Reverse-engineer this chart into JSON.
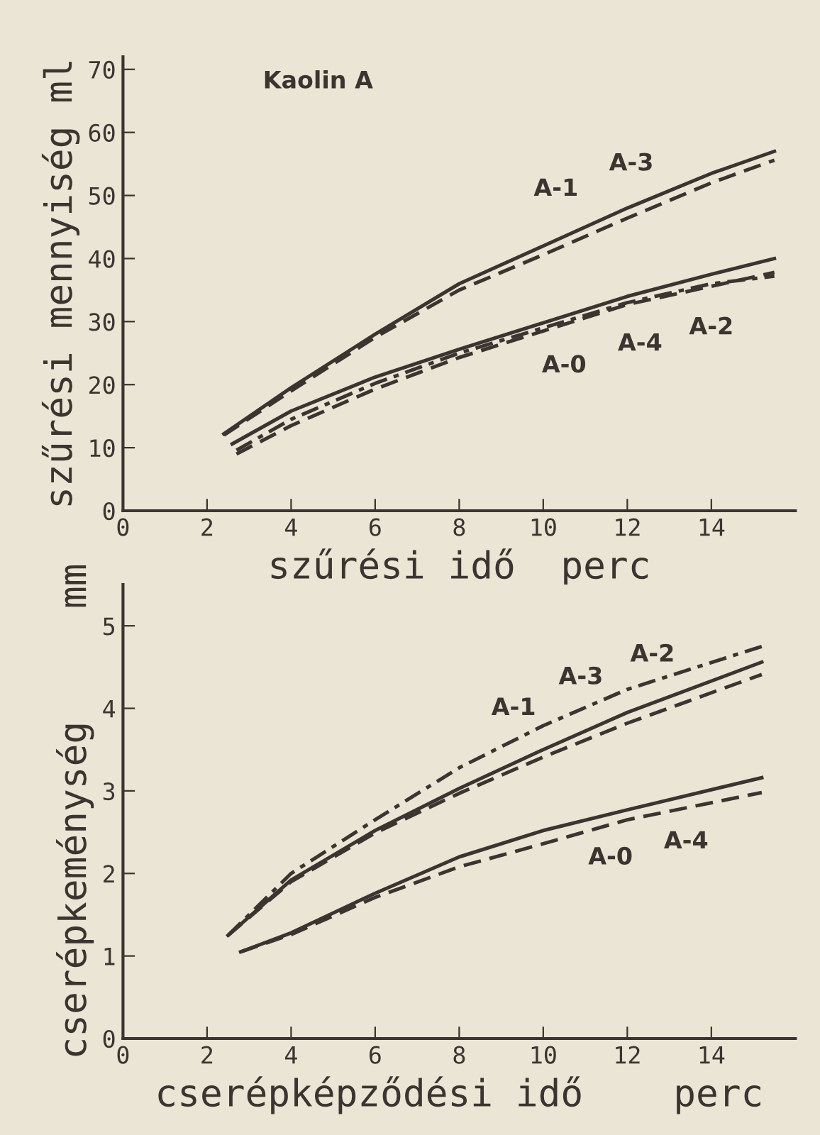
{
  "chart_data": [
    {
      "type": "line",
      "ylabel": "szűrési mennyiség ml",
      "xlabel": "szűrési idő  perc",
      "xlim": [
        0,
        16
      ],
      "ylim": [
        0,
        72
      ],
      "xticks": [
        0,
        2,
        4,
        6,
        8,
        10,
        12,
        14
      ],
      "yticks": [
        0,
        10,
        20,
        30,
        40,
        50,
        60,
        70
      ],
      "grid": false,
      "legend": false,
      "x": [
        2.4,
        4,
        6,
        8,
        10,
        12,
        14,
        15.5
      ],
      "series": [
        {
          "color": "#3a3530",
          "line_style": "solid",
          "values": [
            12.2,
            19.5,
            28,
            36,
            42,
            48,
            53.5,
            57
          ]
        },
        {
          "color": "#3a3530",
          "line_style": "dashed",
          "values": [
            12,
            19,
            27.5,
            35,
            40.6,
            46.4,
            52,
            55.6
          ]
        },
        {
          "color": "#3a3530",
          "line_style": "solid",
          "x": [
            2.6,
            4,
            6,
            8,
            10,
            12,
            14,
            15.5
          ],
          "values": [
            10.6,
            15.8,
            21.2,
            25.6,
            29.8,
            34,
            37.5,
            40
          ]
        },
        {
          "color": "#3a3530",
          "line_style": "dashed",
          "x": [
            2.7,
            4,
            6,
            8,
            10,
            12,
            14,
            15.5
          ],
          "values": [
            9,
            13.5,
            19.3,
            24.3,
            28.5,
            32.7,
            35.6,
            37.8
          ]
        },
        {
          "color": "#3a3530",
          "line_style": "dashdot",
          "x": [
            2.7,
            4,
            6,
            8,
            10,
            12,
            14,
            15.5
          ],
          "values": [
            9.6,
            14.5,
            20.2,
            25,
            29,
            33,
            36,
            37.2
          ]
        }
      ],
      "annotations": [
        "Kaolin A",
        "A-1",
        "A-3",
        "A-0",
        "A-4",
        "A-2"
      ]
    },
    {
      "type": "line",
      "ylabel": "cserépkeménység     mm",
      "xlabel": "cserépképződési idő    perc",
      "xlim": [
        0,
        16
      ],
      "ylim": [
        0,
        5.5
      ],
      "xticks": [
        0,
        2,
        4,
        6,
        8,
        10,
        12,
        14
      ],
      "yticks": [
        0,
        1,
        2,
        3,
        4,
        5
      ],
      "grid": false,
      "legend": false,
      "x": [
        2.5,
        4,
        6,
        8,
        10,
        12,
        15.2
      ],
      "series": [
        {
          "color": "#3a3530",
          "line_style": "dashdot",
          "values": [
            1.25,
            2.0,
            2.65,
            3.28,
            3.79,
            4.23,
            4.75
          ]
        },
        {
          "color": "#3a3530",
          "line_style": "solid",
          "values": [
            1.25,
            1.92,
            2.52,
            3.03,
            3.5,
            3.95,
            4.56
          ]
        },
        {
          "color": "#3a3530",
          "line_style": "dashed",
          "values": [
            1.25,
            1.9,
            2.49,
            2.97,
            3.41,
            3.82,
            4.41
          ]
        },
        {
          "color": "#3a3530",
          "line_style": "solid",
          "x": [
            2.8,
            4,
            6,
            8,
            10,
            12,
            15.2
          ],
          "values": [
            1.05,
            1.28,
            1.76,
            2.2,
            2.52,
            2.77,
            3.16
          ]
        },
        {
          "color": "#3a3530",
          "line_style": "dashed",
          "x": [
            2.8,
            4,
            6,
            8,
            10,
            12,
            15.2
          ],
          "values": [
            1.05,
            1.26,
            1.71,
            2.08,
            2.36,
            2.65,
            2.98
          ]
        }
      ],
      "annotations": [
        "A-1",
        "A-3",
        "A-2",
        "A-0",
        "A-4"
      ]
    }
  ]
}
